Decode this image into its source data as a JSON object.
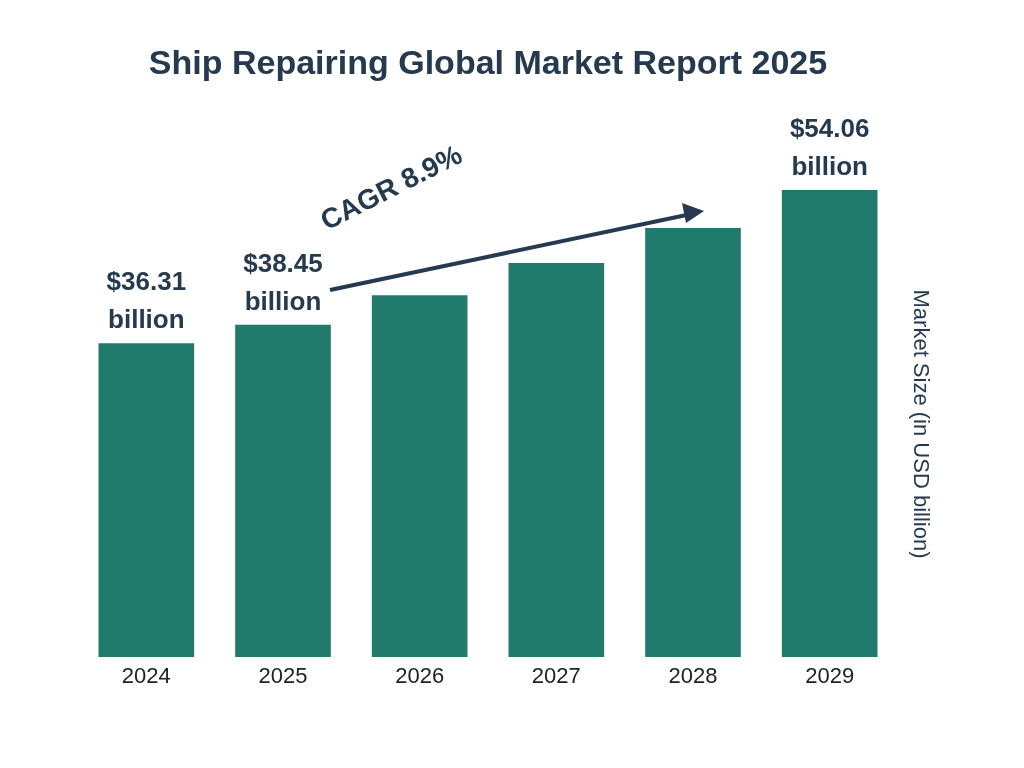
{
  "chart_data": {
    "type": "bar",
    "title": "Ship Repairing Global Market Report 2025",
    "ylabel": "Market Size (in USD billion)",
    "categories": [
      "2024",
      "2025",
      "2026",
      "2027",
      "2028",
      "2029"
    ],
    "values": [
      36.31,
      38.45,
      41.87,
      45.6,
      49.65,
      54.06
    ],
    "value_labels": [
      "$36.31 billion",
      "$38.45 billion",
      null,
      null,
      null,
      "$54.06 billion"
    ],
    "color": "#217b6d",
    "tick_labels": "x",
    "grid": false,
    "annotations": [
      "CAGR 8.9%"
    ]
  }
}
